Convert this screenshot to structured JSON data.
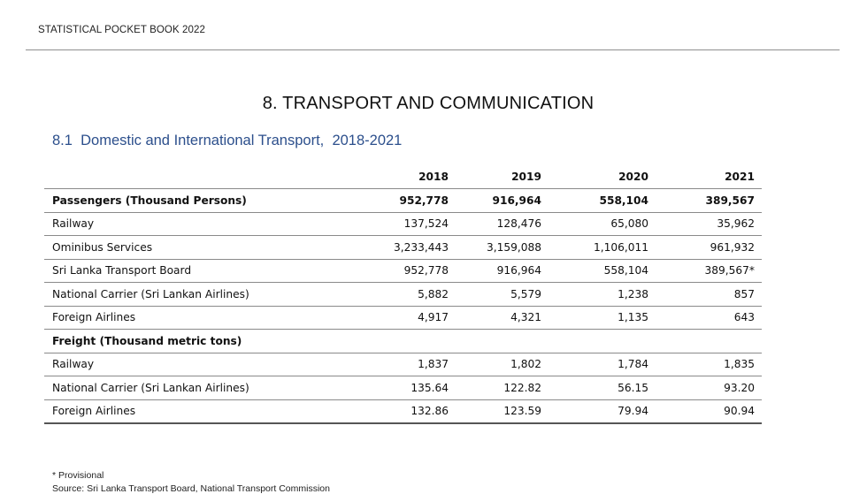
{
  "header": {
    "running_title": "STATISTICAL POCKET BOOK 2022"
  },
  "chapter": {
    "title": "8. TRANSPORT AND COMMUNICATION"
  },
  "section": {
    "number": "8.1",
    "title": "Domestic and International Transport,",
    "period": "2018-2021"
  },
  "table": {
    "columns": [
      "",
      "2018",
      "2019",
      "2020",
      "2021"
    ],
    "rows": [
      {
        "label": "Passengers (Thousand Persons)",
        "values": [
          "952,778",
          "916,964",
          "558,104",
          "389,567"
        ],
        "bold": true
      },
      {
        "label": "Railway",
        "values": [
          "137,524",
          "128,476",
          "65,080",
          "35,962"
        ],
        "bold": false
      },
      {
        "label": "Ominibus Services",
        "values": [
          "3,233,443",
          "3,159,088",
          "1,106,011",
          "961,932"
        ],
        "bold": false
      },
      {
        "label": "Sri Lanka Transport Board",
        "values": [
          "952,778",
          "916,964",
          "558,104",
          "389,567*"
        ],
        "bold": false
      },
      {
        "label": "National Carrier (Sri Lankan Airlines)",
        "values": [
          "5,882",
          "5,579",
          "1,238",
          "857"
        ],
        "bold": false
      },
      {
        "label": "Foreign Airlines",
        "values": [
          "4,917",
          "4,321",
          "1,135",
          "643"
        ],
        "bold": false
      },
      {
        "label": "Freight (Thousand metric tons)",
        "values": [
          "",
          "",
          "",
          ""
        ],
        "bold": true
      },
      {
        "label": "Railway",
        "values": [
          "1,837",
          "1,802",
          "1,784",
          "1,835"
        ],
        "bold": false
      },
      {
        "label": "National Carrier (Sri Lankan Airlines)",
        "values": [
          "135.64",
          "122.82",
          "56.15",
          "93.20"
        ],
        "bold": false
      },
      {
        "label": "Foreign Airlines",
        "values": [
          "132.86",
          "123.59",
          "79.94",
          "90.94"
        ],
        "bold": false
      }
    ]
  },
  "footnotes": {
    "provisional": "* Provisional",
    "source": "Source: Sri Lanka Transport Board, National Transport Commission"
  }
}
